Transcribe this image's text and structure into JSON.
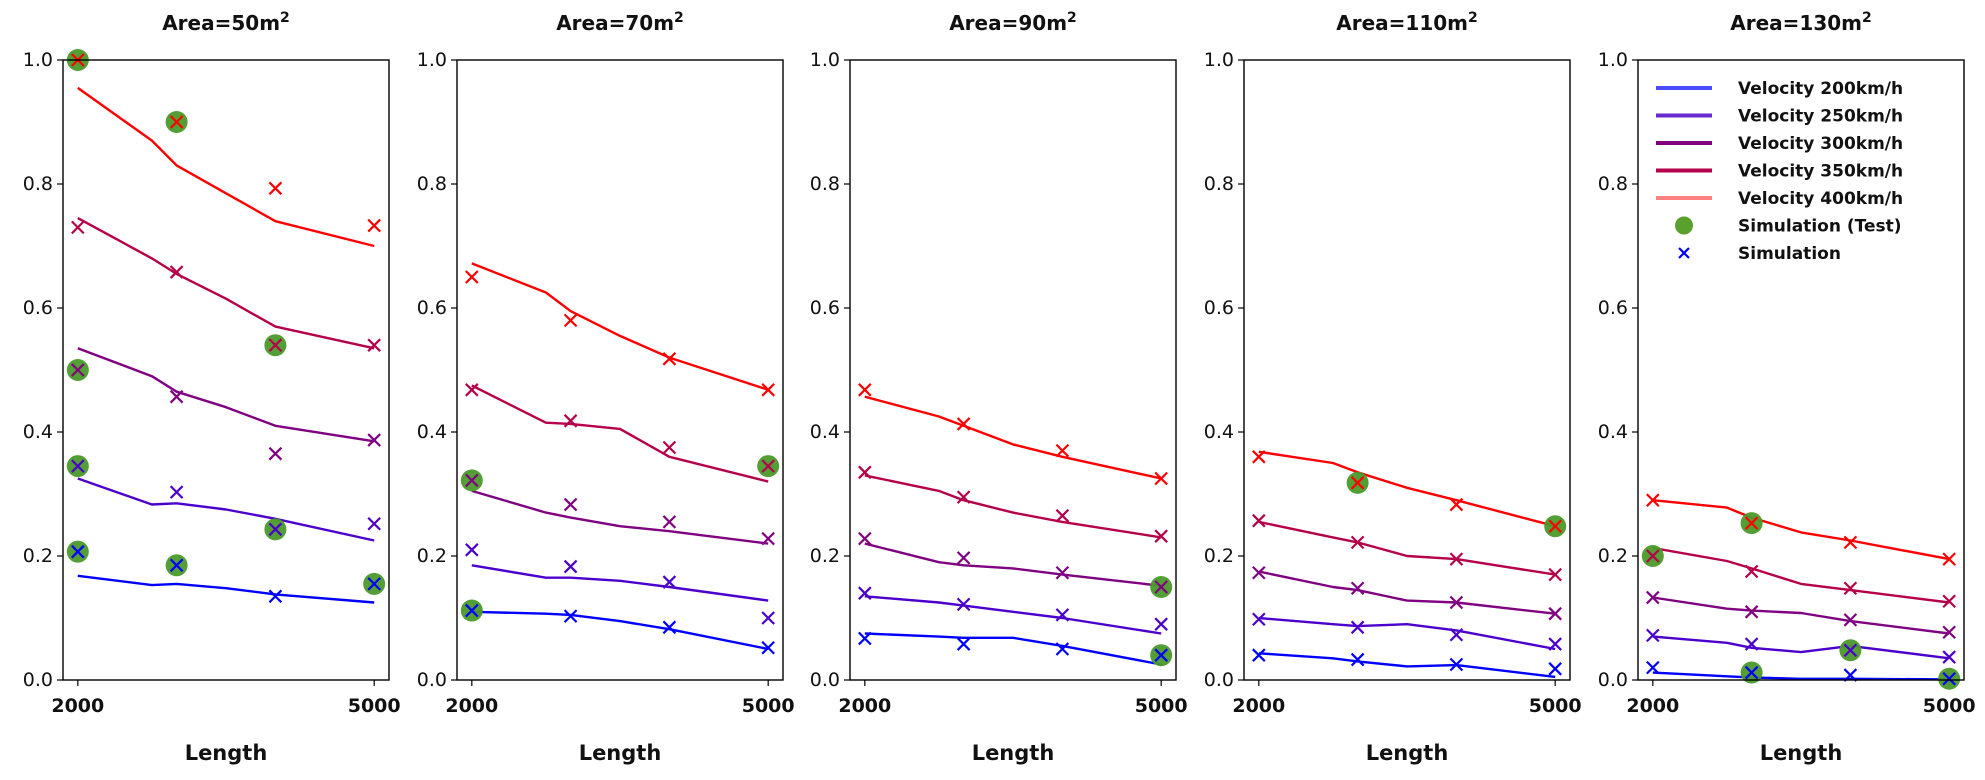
{
  "chart_data": {
    "type": "line",
    "x_ticks": [
      2000,
      5000
    ],
    "y_ticks": [
      0.0,
      0.2,
      0.4,
      0.6,
      0.8,
      1.0
    ],
    "y_tick_labels": [
      "0.0",
      "0.2",
      "0.4",
      "0.6",
      "0.8",
      "1.0"
    ],
    "ylim": [
      0,
      1.0
    ],
    "xlim": [
      1850,
      5150
    ],
    "xlabel": "Length",
    "series_colors": {
      "Velocity 200km/h": "#0000ff",
      "Velocity 250km/h": "#4b00cc",
      "Velocity 300km/h": "#7f0080",
      "Velocity 350km/h": "#b5004a",
      "Velocity 400km/h": "#ff0000"
    },
    "legend": {
      "position": "top-right of last panel",
      "entries": [
        {
          "label": "Velocity 200km/h",
          "kind": "line",
          "color": "#4a4aff"
        },
        {
          "label": "Velocity 250km/h",
          "kind": "line",
          "color": "#6a2ad0"
        },
        {
          "label": "Velocity 300km/h",
          "kind": "line",
          "color": "#800080"
        },
        {
          "label": "Velocity 350km/h",
          "kind": "line",
          "color": "#b5004a"
        },
        {
          "label": "Velocity 400km/h",
          "kind": "line",
          "color": "#ff8080"
        },
        {
          "label": "Simulation  (Test)",
          "kind": "circle",
          "color": "#5aa02c"
        },
        {
          "label": "Simulation",
          "kind": "x",
          "color": "#0000ff"
        }
      ]
    },
    "panels": [
      {
        "title_prefix": "Area=50m",
        "title_sup": "2",
        "line_x": [
          2000,
          2750,
          3000,
          3500,
          4000,
          5000
        ],
        "lines": [
          [
            0.168,
            0.153,
            0.155,
            0.148,
            0.138,
            0.125
          ],
          [
            0.325,
            0.283,
            0.285,
            0.275,
            0.26,
            0.225
          ],
          [
            0.535,
            0.49,
            0.465,
            0.44,
            0.41,
            0.385
          ],
          [
            0.745,
            0.68,
            0.655,
            0.615,
            0.57,
            0.535
          ],
          [
            0.955,
            0.87,
            0.83,
            0.785,
            0.74,
            0.7
          ]
        ],
        "sim_x": [
          2000,
          3000,
          4000,
          5000
        ],
        "sims": [
          [
            0.207,
            0.185,
            0.135,
            0.155
          ],
          [
            0.345,
            0.303,
            0.243,
            0.252
          ],
          [
            0.5,
            0.457,
            0.365,
            0.387
          ],
          [
            0.73,
            0.658,
            0.54,
            0.54
          ],
          [
            1.0,
            0.9,
            0.793,
            0.733
          ]
        ],
        "test_points": [
          [
            2000,
            0.207
          ],
          [
            2000,
            0.345
          ],
          [
            2000,
            0.5
          ],
          [
            2000,
            1.0
          ],
          [
            3000,
            0.185
          ],
          [
            3000,
            0.9
          ],
          [
            4000,
            0.243
          ],
          [
            4000,
            0.54
          ],
          [
            5000,
            0.155
          ]
        ]
      },
      {
        "title_prefix": "Area=70m",
        "title_sup": "2",
        "line_x": [
          2000,
          2750,
          3000,
          3500,
          4000,
          5000
        ],
        "lines": [
          [
            0.11,
            0.107,
            0.105,
            0.095,
            0.082,
            0.05
          ],
          [
            0.185,
            0.165,
            0.165,
            0.16,
            0.15,
            0.128
          ],
          [
            0.305,
            0.27,
            0.262,
            0.248,
            0.24,
            0.22
          ],
          [
            0.475,
            0.415,
            0.413,
            0.405,
            0.36,
            0.32
          ],
          [
            0.672,
            0.625,
            0.595,
            0.555,
            0.52,
            0.468
          ]
        ],
        "sim_x": [
          2000,
          3000,
          4000,
          5000
        ],
        "sims": [
          [
            0.112,
            0.103,
            0.085,
            0.052
          ],
          [
            0.21,
            0.183,
            0.158,
            0.1
          ],
          [
            0.322,
            0.283,
            0.255,
            0.228
          ],
          [
            0.468,
            0.418,
            0.375,
            0.345
          ],
          [
            0.65,
            0.58,
            0.518,
            0.468
          ]
        ],
        "test_points": [
          [
            2000,
            0.112
          ],
          [
            2000,
            0.322
          ],
          [
            5000,
            0.345
          ]
        ]
      },
      {
        "title_prefix": "Area=90m",
        "title_sup": "2",
        "line_x": [
          2000,
          2750,
          3000,
          3500,
          4000,
          5000
        ],
        "lines": [
          [
            0.075,
            0.07,
            0.068,
            0.068,
            0.055,
            0.025
          ],
          [
            0.135,
            0.125,
            0.12,
            0.11,
            0.1,
            0.075
          ],
          [
            0.22,
            0.19,
            0.185,
            0.18,
            0.17,
            0.152
          ],
          [
            0.33,
            0.305,
            0.29,
            0.27,
            0.255,
            0.23
          ],
          [
            0.457,
            0.425,
            0.41,
            0.38,
            0.36,
            0.325
          ]
        ],
        "sim_x": [
          2000,
          3000,
          4000,
          5000
        ],
        "sims": [
          [
            0.067,
            0.058,
            0.05,
            0.04
          ],
          [
            0.14,
            0.122,
            0.105,
            0.09
          ],
          [
            0.228,
            0.197,
            0.173,
            0.15
          ],
          [
            0.335,
            0.295,
            0.265,
            0.232
          ],
          [
            0.468,
            0.413,
            0.37,
            0.325
          ]
        ],
        "test_points": [
          [
            5000,
            0.15
          ],
          [
            5000,
            0.04
          ]
        ]
      },
      {
        "title_prefix": "Area=110m",
        "title_sup": "2",
        "line_x": [
          2000,
          2750,
          3000,
          3500,
          4000,
          5000
        ],
        "lines": [
          [
            0.043,
            0.035,
            0.03,
            0.022,
            0.024,
            0.005
          ],
          [
            0.1,
            0.09,
            0.087,
            0.09,
            0.08,
            0.05
          ],
          [
            0.175,
            0.15,
            0.145,
            0.128,
            0.125,
            0.107
          ],
          [
            0.255,
            0.23,
            0.222,
            0.2,
            0.195,
            0.17
          ],
          [
            0.368,
            0.35,
            0.335,
            0.31,
            0.29,
            0.248
          ]
        ],
        "sim_x": [
          2000,
          3000,
          4000,
          5000
        ],
        "sims": [
          [
            0.04,
            0.033,
            0.025,
            0.018
          ],
          [
            0.098,
            0.085,
            0.073,
            0.058
          ],
          [
            0.173,
            0.148,
            0.125,
            0.107
          ],
          [
            0.257,
            0.222,
            0.195,
            0.17
          ],
          [
            0.36,
            0.318,
            0.283,
            0.248
          ]
        ],
        "test_points": [
          [
            3000,
            0.318
          ],
          [
            5000,
            0.248
          ]
        ]
      },
      {
        "title_prefix": "Area=130m",
        "title_sup": "2",
        "line_x": [
          2000,
          2750,
          3000,
          3500,
          4000,
          5000
        ],
        "lines": [
          [
            0.012,
            0.006,
            0.004,
            0.002,
            0.002,
            0.001
          ],
          [
            0.07,
            0.06,
            0.052,
            0.045,
            0.055,
            0.035
          ],
          [
            0.133,
            0.115,
            0.112,
            0.108,
            0.095,
            0.075
          ],
          [
            0.213,
            0.192,
            0.18,
            0.155,
            0.145,
            0.125
          ],
          [
            0.29,
            0.278,
            0.262,
            0.238,
            0.225,
            0.195
          ]
        ],
        "sim_x": [
          2000,
          3000,
          4000,
          5000
        ],
        "sims": [
          [
            0.02,
            0.012,
            0.008,
            0.002
          ],
          [
            0.072,
            0.058,
            0.048,
            0.037
          ],
          [
            0.133,
            0.11,
            0.097,
            0.077
          ],
          [
            0.2,
            0.175,
            0.148,
            0.127
          ],
          [
            0.29,
            0.253,
            0.222,
            0.195
          ]
        ],
        "test_points": [
          [
            2000,
            0.2
          ],
          [
            3000,
            0.253
          ],
          [
            3000,
            0.012
          ],
          [
            4000,
            0.048
          ],
          [
            5000,
            0.002
          ]
        ]
      }
    ]
  }
}
